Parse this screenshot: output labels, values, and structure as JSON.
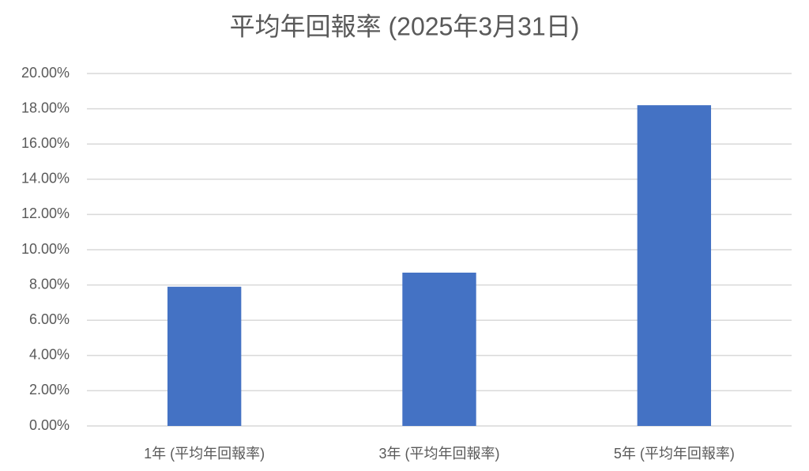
{
  "chart_data": {
    "type": "bar",
    "title": "平均年回報率 (2025年3月31日)",
    "categories": [
      "1年 (平均年回報率)",
      "3年 (平均年回報率)",
      "5年 (平均年回報率)"
    ],
    "values": [
      7.9,
      8.7,
      18.2
    ],
    "color": "#4472c4",
    "ylim": [
      0,
      20
    ],
    "yticks": [
      {
        "value": 0,
        "label": "0.00%"
      },
      {
        "value": 2,
        "label": "2.00%"
      },
      {
        "value": 4,
        "label": "4.00%"
      },
      {
        "value": 6,
        "label": "6.00%"
      },
      {
        "value": 8,
        "label": "8.00%"
      },
      {
        "value": 10,
        "label": "10.00%"
      },
      {
        "value": 12,
        "label": "12.00%"
      },
      {
        "value": 14,
        "label": "14.00%"
      },
      {
        "value": 16,
        "label": "16.00%"
      },
      {
        "value": 18,
        "label": "18.00%"
      },
      {
        "value": 20,
        "label": "20.00%"
      }
    ],
    "grid": true
  }
}
